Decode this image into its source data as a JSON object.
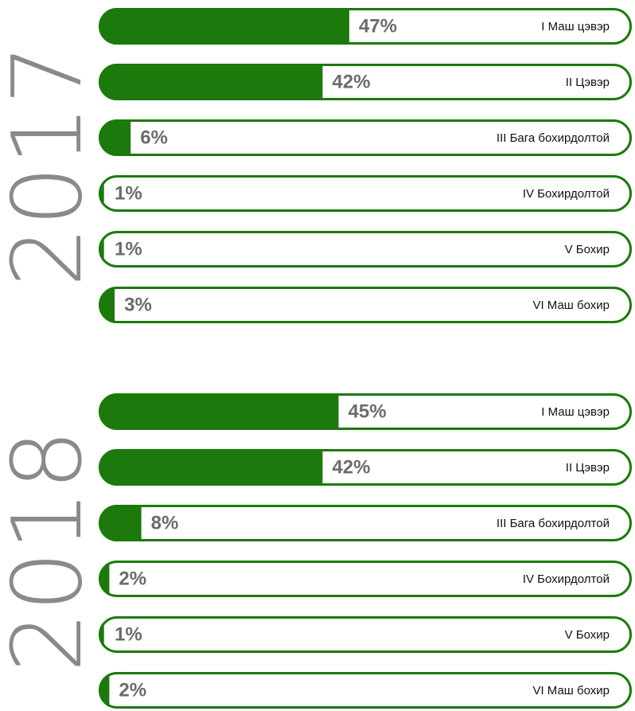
{
  "chart_data": [
    {
      "type": "bar",
      "title": "2017",
      "color": "#1c7a0c",
      "xlim": [
        0,
        100
      ],
      "categories": [
        "I Маш цэвэр",
        "II Цэвэр",
        "III Бага бохирдолтой",
        "IV Бохирдолтой",
        "V Бохир",
        "VI Маш бохир"
      ],
      "values": [
        47,
        42,
        6,
        1,
        1,
        3
      ],
      "value_labels": [
        "47%",
        "42%",
        "6%",
        "1%",
        "1%",
        "3%"
      ]
    },
    {
      "type": "bar",
      "title": "2018",
      "color": "#1c7a0c",
      "xlim": [
        0,
        100
      ],
      "categories": [
        "I Маш цэвэр",
        "II Цэвэр",
        "III Бага бохирдолтой",
        "IV Бохирдолтой",
        "V Бохир",
        "VI Маш бохир"
      ],
      "values": [
        45,
        42,
        8,
        2,
        1,
        2
      ],
      "value_labels": [
        "45%",
        "42%",
        "8%",
        "2%",
        "1%",
        "2%"
      ]
    }
  ]
}
